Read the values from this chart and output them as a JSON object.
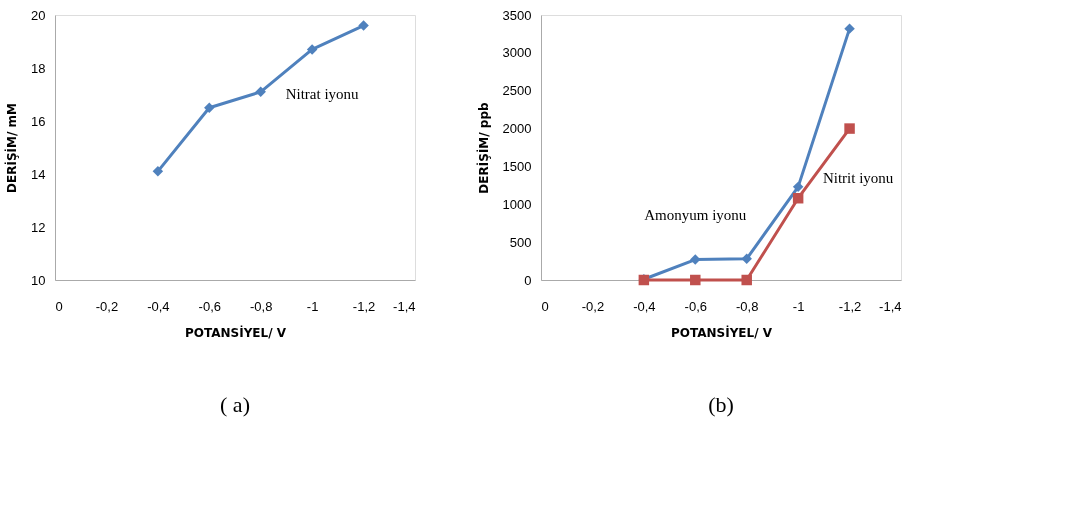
{
  "chart_data": [
    {
      "type": "line",
      "xlabel": "POTANSİYEL/ V",
      "ylabel": "DERİŞİM/ mM",
      "annotations": [
        "( a)"
      ],
      "x": [
        -0.4,
        -0.6,
        -0.8,
        -1,
        -1.2
      ],
      "series": [
        {
          "name": "Nitrat iyonu",
          "color": "#4f81bd",
          "marker": "diamond",
          "values": [
            14.1,
            16.5,
            17.1,
            18.7,
            19.6
          ]
        }
      ],
      "xlim": [
        0,
        -1.4
      ],
      "xticks": [
        0,
        {
          "value": -0.2,
          "label": "-0,2"
        },
        {
          "value": -0.4,
          "label": "-0,4"
        },
        {
          "value": -0.6,
          "label": "-0,6"
        },
        {
          "value": -0.8,
          "label": "-0,8"
        },
        -1,
        {
          "value": -1.2,
          "label": "-1,2"
        },
        {
          "value": -1.4,
          "label": "-1,4"
        }
      ],
      "ylim": [
        10,
        20
      ],
      "yticks": [
        10,
        12,
        14,
        16,
        18,
        20
      ],
      "grid": false,
      "legend": false,
      "line_style": "solid"
    },
    {
      "type": "line",
      "xlabel": "POTANSİYEL/ V",
      "ylabel": "DERİŞİM/ ppb",
      "annotations": [
        "(b)"
      ],
      "x": [
        -0.4,
        -0.6,
        -0.8,
        -1,
        -1.2
      ],
      "series": [
        {
          "name": "Amonyum iyonu",
          "color": "#4f81bd",
          "marker": "diamond",
          "values": [
            10,
            270,
            280,
            1230,
            3320
          ]
        },
        {
          "name": "Nitrit iyonu",
          "color": "#c0504d",
          "marker": "square",
          "values": [
            0,
            0,
            0,
            1080,
            2000
          ]
        }
      ],
      "xlim": [
        0,
        -1.4
      ],
      "xticks": [
        0,
        {
          "value": -0.2,
          "label": "-0,2"
        },
        {
          "value": -0.4,
          "label": "-0,4"
        },
        {
          "value": -0.6,
          "label": "-0,6"
        },
        {
          "value": -0.8,
          "label": "-0,8"
        },
        -1,
        {
          "value": -1.2,
          "label": "-1,2"
        },
        {
          "value": -1.4,
          "label": "-1,4"
        }
      ],
      "ylim": [
        0,
        3500
      ],
      "yticks": [
        0,
        500,
        1000,
        1500,
        2000,
        2500,
        3000,
        3500
      ],
      "grid": false,
      "legend": false,
      "line_style": "solid"
    }
  ]
}
